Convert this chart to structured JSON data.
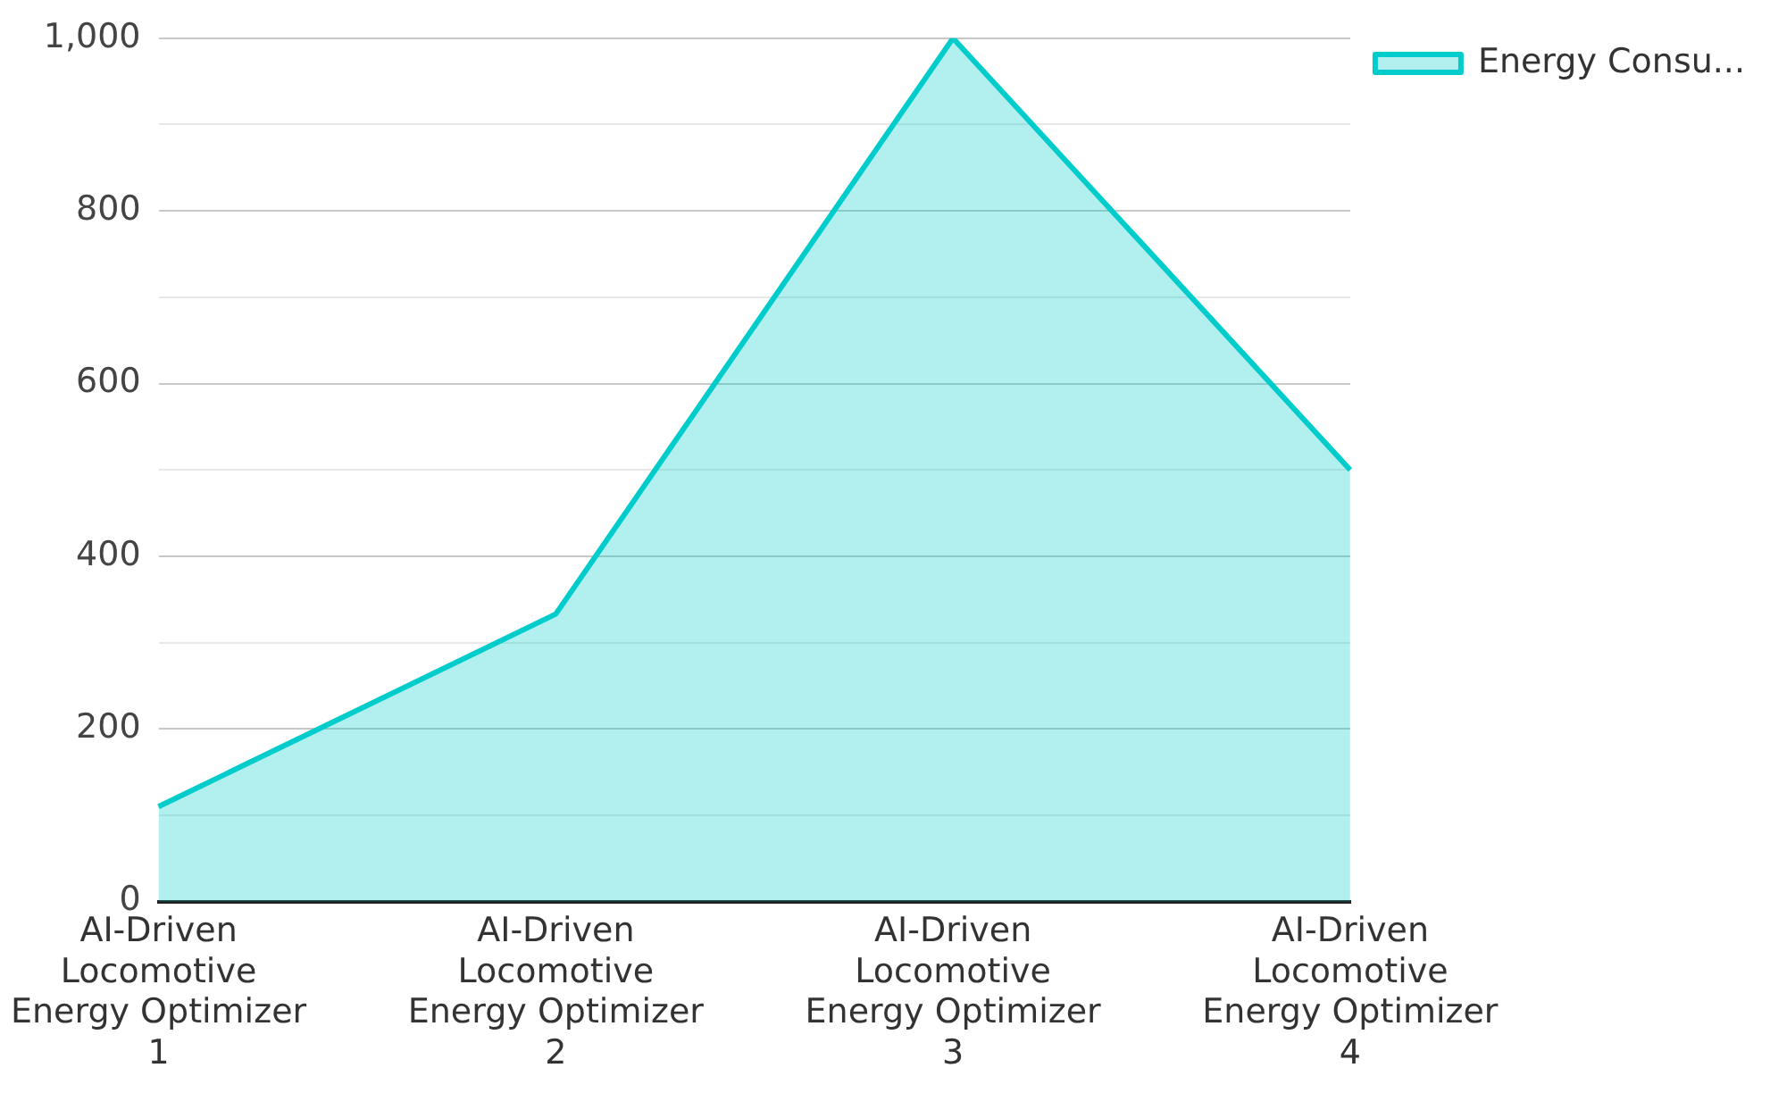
{
  "chart_data": {
    "type": "area",
    "categories": [
      "AI-Driven Locomotive Energy Optimizer 1",
      "AI-Driven Locomotive Energy Optimizer 2",
      "AI-Driven Locomotive Energy Optimizer 3",
      "AI-Driven Locomotive Energy Optimizer 4"
    ],
    "series": [
      {
        "name": "Energy Consu...",
        "color": "#00cccc",
        "values": [
          110,
          333,
          1000,
          500
        ]
      }
    ],
    "ylim": [
      0,
      1000
    ],
    "yticks": [
      0,
      {
        "value": 100,
        "label": null
      },
      200,
      {
        "value": 300,
        "label": null
      },
      400,
      {
        "value": 500,
        "label": null
      },
      600,
      {
        "value": 700,
        "label": null
      },
      800,
      {
        "value": 900,
        "label": null
      },
      {
        "value": 1000,
        "label": "1,000"
      }
    ],
    "grid": "y",
    "legend": "top right",
    "marker": "none",
    "line_style": "solid"
  }
}
